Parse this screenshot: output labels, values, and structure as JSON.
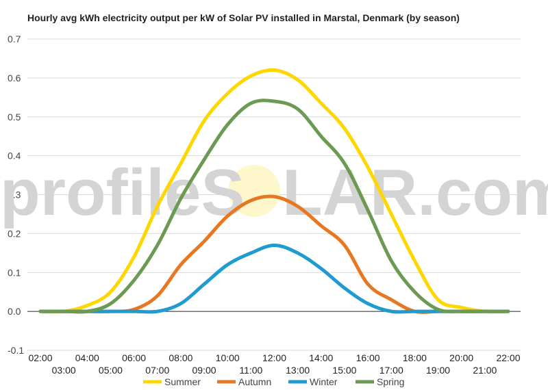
{
  "chart_data": {
    "type": "line",
    "title": "Hourly avg kWh electricity output per kW of Solar PV installed in Marstal, Denmark (by season)",
    "xlabel": "",
    "ylabel": "",
    "ylim": [
      -0.1,
      0.7
    ],
    "yticks": [
      -0.1,
      0.0,
      0.1,
      0.2,
      0.3,
      0.4,
      0.5,
      0.6,
      0.7
    ],
    "ytick_labels": [
      "-0.1",
      "0.0",
      "0.1",
      "0.2",
      "0.3",
      "0.4",
      "0.5",
      "0.6",
      "0.7"
    ],
    "x": [
      "02:00",
      "03:00",
      "04:00",
      "05:00",
      "06:00",
      "07:00",
      "08:00",
      "09:00",
      "10:00",
      "11:00",
      "12:00",
      "13:00",
      "14:00",
      "15:00",
      "16:00",
      "17:00",
      "18:00",
      "19:00",
      "20:00",
      "21:00",
      "22:00"
    ],
    "grid": true,
    "legend_position": "bottom",
    "series": [
      {
        "name": "Summer",
        "color": "#ffd700",
        "values": [
          0.0,
          0.0,
          0.015,
          0.05,
          0.14,
          0.27,
          0.38,
          0.49,
          0.56,
          0.605,
          0.62,
          0.595,
          0.535,
          0.47,
          0.37,
          0.25,
          0.13,
          0.03,
          0.01,
          0.0,
          0.0
        ]
      },
      {
        "name": "Autumn",
        "color": "#e87722",
        "values": [
          0.0,
          0.0,
          0.0,
          0.0,
          0.005,
          0.04,
          0.12,
          0.18,
          0.245,
          0.285,
          0.295,
          0.27,
          0.22,
          0.17,
          0.07,
          0.03,
          0.0,
          0.0,
          0.0,
          0.0,
          0.0
        ]
      },
      {
        "name": "Winter",
        "color": "#1f9bcf",
        "values": [
          0.0,
          0.0,
          0.0,
          0.0,
          0.0,
          0.0,
          0.02,
          0.07,
          0.12,
          0.15,
          0.17,
          0.15,
          0.11,
          0.06,
          0.02,
          0.0,
          0.0,
          0.0,
          0.0,
          0.0,
          0.0
        ]
      },
      {
        "name": "Spring",
        "color": "#6b9a52",
        "values": [
          0.0,
          0.0,
          0.0,
          0.02,
          0.08,
          0.17,
          0.29,
          0.39,
          0.48,
          0.535,
          0.54,
          0.52,
          0.45,
          0.38,
          0.26,
          0.13,
          0.05,
          0.005,
          0.0,
          0.0,
          0.0
        ]
      }
    ]
  },
  "watermark": {
    "left": "profileS",
    "right": "LAR.com"
  }
}
